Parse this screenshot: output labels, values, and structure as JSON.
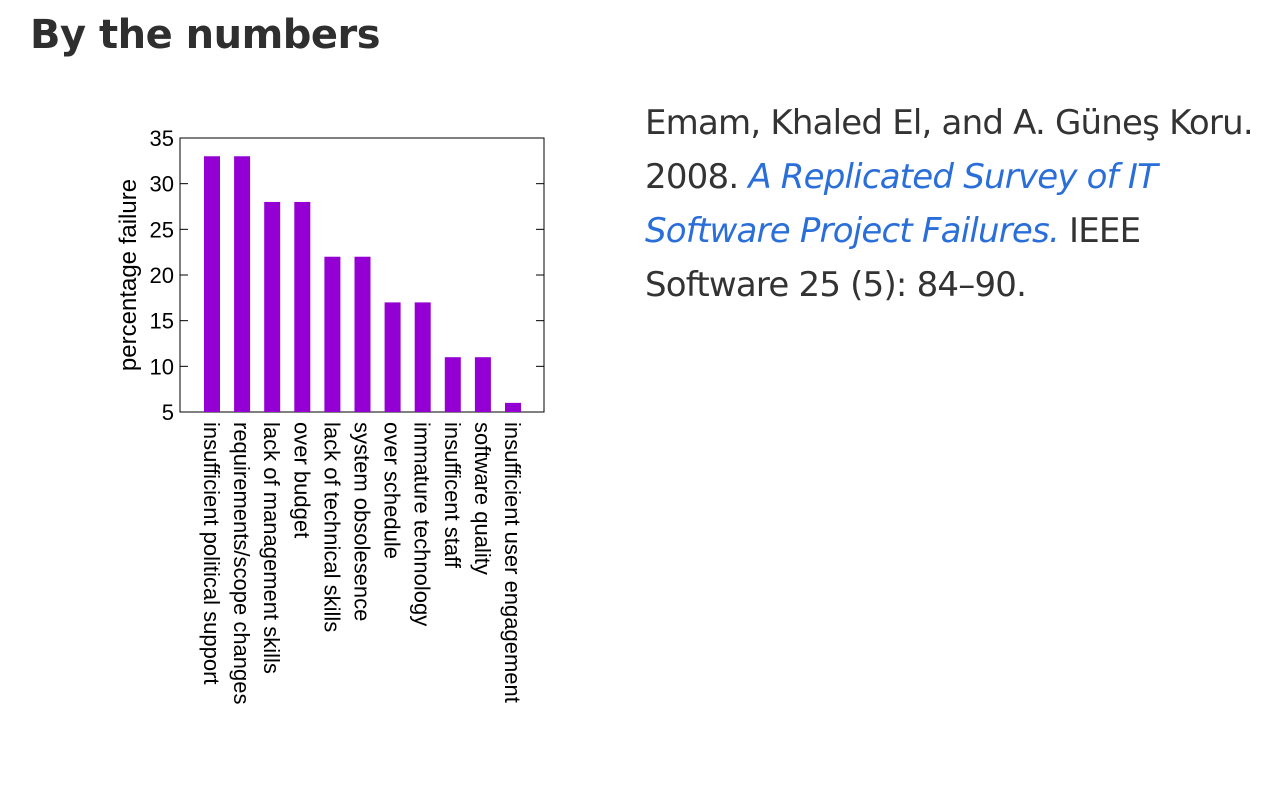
{
  "slide": {
    "title": "By the numbers"
  },
  "citation": {
    "authors_year": "Emam, Khaled El, and A. Güneş Koru. 2008. ",
    "title_link": "A Replicated Survey of IT Software Project Failures.",
    "venue": " IEEE Software 25 (5): 84–90."
  },
  "colors": {
    "bar": "#9400d3",
    "link": "#2a6ed9",
    "title": "#2f2f2f"
  },
  "chart_data": {
    "type": "bar",
    "title": "",
    "xlabel": "",
    "ylabel": "percentage failure",
    "ylim": [
      5,
      35
    ],
    "yticks": [
      5,
      10,
      15,
      20,
      25,
      30,
      35
    ],
    "grid": false,
    "legend": "none",
    "categories": [
      "insufficient political support",
      "requirements/scope changes",
      "lack of management skills",
      "over budget",
      "lack of technical skills",
      "system obsolesence",
      "over schedule",
      "immature technology",
      "insufficent staff",
      "software quality",
      "insufficient user engagement"
    ],
    "values": [
      33,
      33,
      28,
      28,
      22,
      22,
      17,
      17,
      11,
      11,
      6
    ]
  }
}
